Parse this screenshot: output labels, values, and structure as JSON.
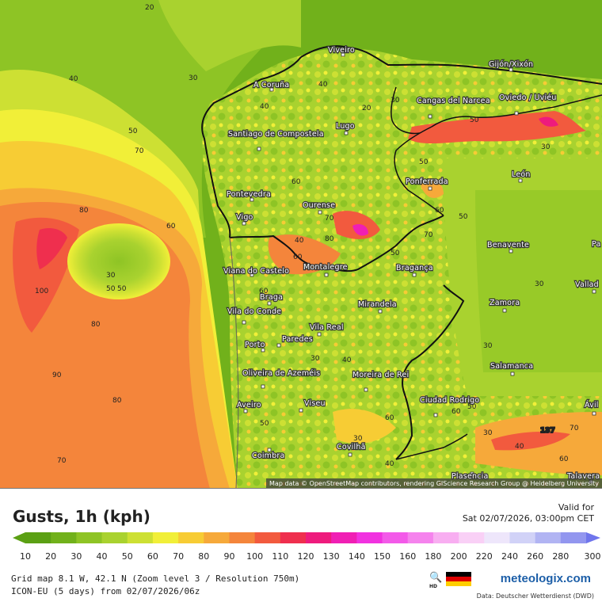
{
  "map": {
    "attribution": "Map data © OpenStreetMap contributors, rendering GIScience Research Group @ Heidelberg University",
    "cities": [
      {
        "name": "Viveiro"
      },
      {
        "name": "A Coruña"
      },
      {
        "name": "Gijón/Xixón"
      },
      {
        "name": "Cangas del Narcea"
      },
      {
        "name": "Oviedo / Uviéu"
      },
      {
        "name": "Lugo"
      },
      {
        "name": "Santiago de Compostela"
      },
      {
        "name": "León"
      },
      {
        "name": "Ponferrada"
      },
      {
        "name": "Pontevedra"
      },
      {
        "name": "Ourense"
      },
      {
        "name": "Vigo"
      },
      {
        "name": "Benavente"
      },
      {
        "name": "Viana do Castelo"
      },
      {
        "name": "Montalegre"
      },
      {
        "name": "Bragança"
      },
      {
        "name": "Braga"
      },
      {
        "name": "Mirandela"
      },
      {
        "name": "Zamora"
      },
      {
        "name": "Vila do Conde"
      },
      {
        "name": "Vila Real"
      },
      {
        "name": "Porto"
      },
      {
        "name": "Paredes"
      },
      {
        "name": "Salamanca"
      },
      {
        "name": "Oliveira de Azeméis"
      },
      {
        "name": "Moreira de Rei"
      },
      {
        "name": "Aveiro"
      },
      {
        "name": "Viseu"
      },
      {
        "name": "Ciudad Rodrigo"
      },
      {
        "name": "Covilhã"
      },
      {
        "name": "Coimbra"
      },
      {
        "name": "Plasencia"
      },
      {
        "name": "Valladolid (partial)",
        "display": "Vallad"
      },
      {
        "name": "Ávila (partial)",
        "display": "Ávil"
      },
      {
        "name": "Talavera (partial)",
        "display": "Talavera"
      },
      {
        "name": "Palencia (partial)",
        "display": "Pa"
      }
    ],
    "isolines": [
      "20",
      "40",
      "30",
      "50",
      "70",
      "80",
      "60",
      "100",
      "90",
      "80",
      "70",
      "40",
      "20",
      "30",
      "40",
      "50",
      "60",
      "30",
      "50",
      "70",
      "80",
      "60",
      "50",
      "30",
      "50",
      "60",
      "70",
      "50",
      "40",
      "30",
      "30",
      "40",
      "50",
      "60",
      "80",
      "60",
      "30",
      "40",
      "50",
      "30",
      "60",
      "137",
      "70",
      "30",
      "40",
      "50",
      "60"
    ],
    "max_marker": "137"
  },
  "legend": {
    "title": "Gusts, 1h (kph)",
    "valid_for_label": "Valid for",
    "valid_for_value": "Sat 02/07/2026, 03:00pm CET",
    "scale": [
      {
        "v": "10",
        "c": "#5ba014"
      },
      {
        "v": "20",
        "c": "#71b11b"
      },
      {
        "v": "30",
        "c": "#8ec425"
      },
      {
        "v": "40",
        "c": "#a9d22f"
      },
      {
        "v": "50",
        "c": "#cde033"
      },
      {
        "v": "60",
        "c": "#f1ef38"
      },
      {
        "v": "70",
        "c": "#f7cc34"
      },
      {
        "v": "80",
        "c": "#f6a93a"
      },
      {
        "v": "90",
        "c": "#f4853b"
      },
      {
        "v": "100",
        "c": "#f25a3e"
      },
      {
        "v": "110",
        "c": "#ef2f4e"
      },
      {
        "v": "120",
        "c": "#ee1b7d"
      },
      {
        "v": "130",
        "c": "#f01fb4"
      },
      {
        "v": "140",
        "c": "#f132e0"
      },
      {
        "v": "150",
        "c": "#f35ae9"
      },
      {
        "v": "160",
        "c": "#f583ed"
      },
      {
        "v": "180",
        "c": "#f8aef1"
      },
      {
        "v": "200",
        "c": "#f9d0f6"
      },
      {
        "v": "220",
        "c": "#eee6fb"
      },
      {
        "v": "240",
        "c": "#d1d2f7"
      },
      {
        "v": "260",
        "c": "#b1b4f3"
      },
      {
        "v": "280",
        "c": "#9296ef"
      },
      {
        "v": "300",
        "c": "#6f75ec"
      }
    ],
    "grid_line": "Grid map 8.1 W, 42.1 N (Zoom level 3 / Resolution 750m)",
    "model_line": "ICON-EU (5 days) from 02/07/2026/06z",
    "logo": "meteologix.com",
    "data_credit": "Data: Deutscher Wetterdienst (DWD)",
    "hd_label": "HD"
  }
}
